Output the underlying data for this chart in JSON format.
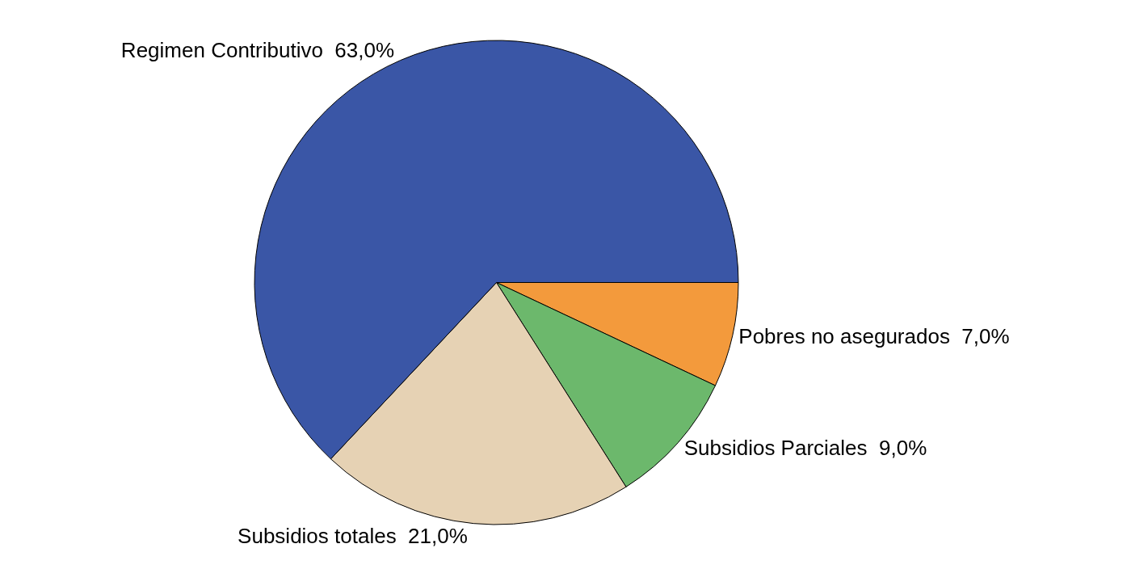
{
  "chart_data": {
    "type": "pie",
    "categories": [
      "Pobres no asegurados",
      "Subsidios Parciales",
      "Subsidios totales",
      "Regimen Contributivo"
    ],
    "values": [
      7,
      9,
      21,
      63
    ],
    "value_labels": [
      "7,0%",
      "9,0%",
      "21,0%",
      "63,0%"
    ],
    "colors": [
      "#f39a3c",
      "#6cb86c",
      "#e6d2b4",
      "#3a56a6"
    ],
    "legend": false
  }
}
